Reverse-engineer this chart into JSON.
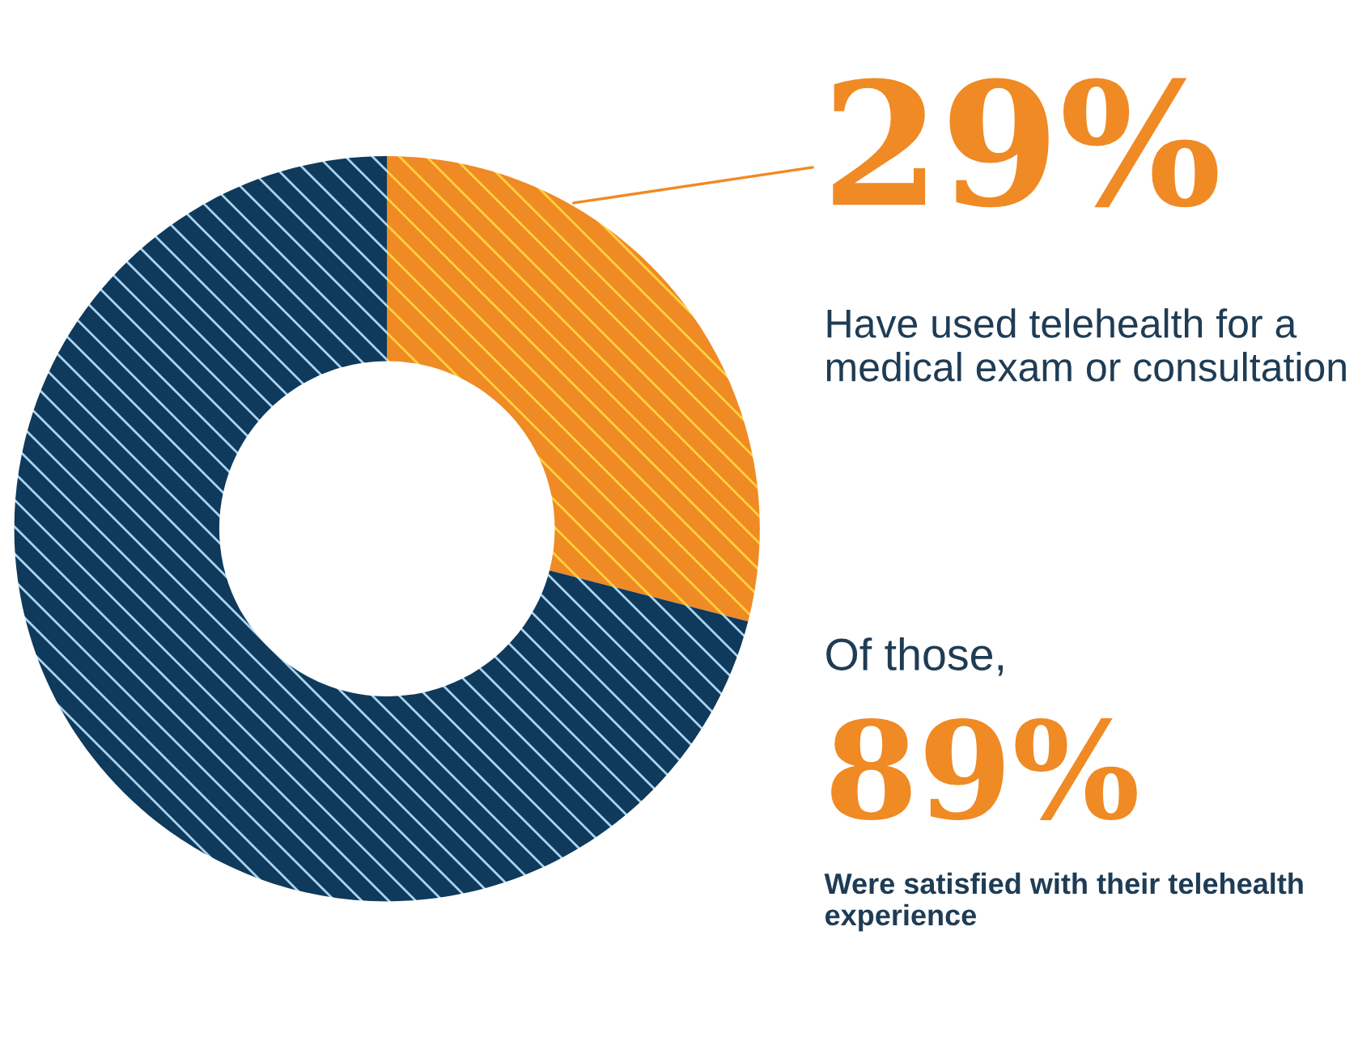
{
  "chart_data": {
    "type": "donut",
    "categories": [
      null,
      null
    ],
    "values": [
      29,
      71
    ],
    "colors": [
      "#f08a24",
      "#0f3a5c"
    ],
    "value_labels": [
      "29%",
      null
    ],
    "annotations": [
      "Have used telehealth for a medical exam or consultation",
      "Of those,",
      "89%",
      "Were satisfied with their telehealth experience"
    ]
  }
}
